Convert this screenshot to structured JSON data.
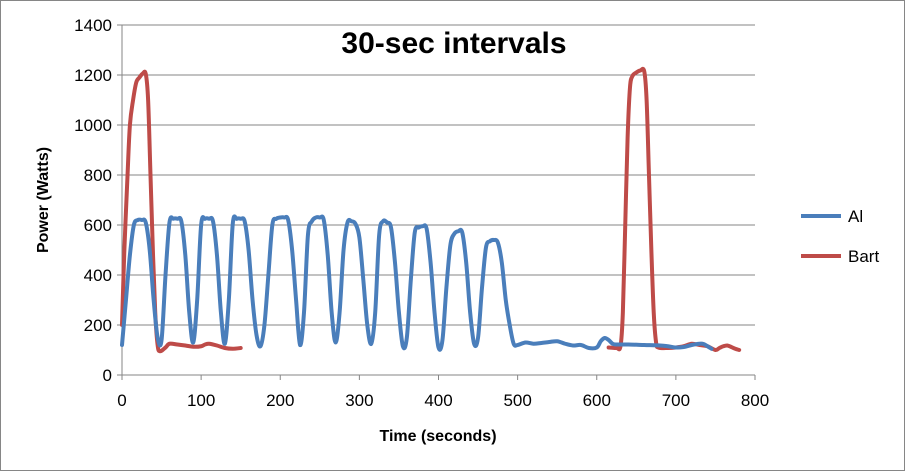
{
  "chart_data": {
    "type": "line",
    "title": "30-sec intervals",
    "xlabel": "Time (seconds)",
    "ylabel": "Power (Watts)",
    "xlim": [
      0,
      800
    ],
    "ylim": [
      0,
      1400
    ],
    "xticks": [
      0,
      100,
      200,
      300,
      400,
      500,
      600,
      700,
      800
    ],
    "yticks": [
      0,
      200,
      400,
      600,
      800,
      1000,
      1200,
      1400
    ],
    "grid": "horizontal",
    "legend": "right",
    "series": [
      {
        "name": "Al",
        "color": "#4a7ebb",
        "segments": [
          [
            [
              0,
              120
            ],
            [
              5,
              300
            ],
            [
              10,
              480
            ],
            [
              15,
              600
            ],
            [
              20,
              620
            ],
            [
              25,
              620
            ],
            [
              30,
              610
            ],
            [
              35,
              500
            ],
            [
              40,
              300
            ],
            [
              45,
              150
            ],
            [
              50,
              140
            ],
            [
              55,
              400
            ],
            [
              60,
              610
            ],
            [
              65,
              625
            ],
            [
              70,
              625
            ],
            [
              75,
              615
            ],
            [
              80,
              480
            ],
            [
              85,
              250
            ],
            [
              90,
              130
            ],
            [
              95,
              300
            ],
            [
              100,
              600
            ],
            [
              105,
              625
            ],
            [
              110,
              625
            ],
            [
              115,
              615
            ],
            [
              120,
              480
            ],
            [
              125,
              250
            ],
            [
              130,
              125
            ],
            [
              135,
              300
            ],
            [
              140,
              605
            ],
            [
              145,
              625
            ],
            [
              150,
              625
            ],
            [
              155,
              615
            ],
            [
              160,
              500
            ],
            [
              165,
              300
            ],
            [
              170,
              160
            ],
            [
              175,
              115
            ],
            [
              180,
              200
            ],
            [
              185,
              400
            ],
            [
              190,
              600
            ],
            [
              195,
              625
            ],
            [
              200,
              630
            ],
            [
              205,
              630
            ],
            [
              210,
              620
            ],
            [
              215,
              500
            ],
            [
              220,
              300
            ],
            [
              225,
              120
            ],
            [
              230,
              250
            ],
            [
              235,
              560
            ],
            [
              240,
              615
            ],
            [
              245,
              630
            ],
            [
              250,
              630
            ],
            [
              255,
              620
            ],
            [
              260,
              480
            ],
            [
              265,
              250
            ],
            [
              270,
              130
            ],
            [
              275,
              250
            ],
            [
              280,
              500
            ],
            [
              285,
              610
            ],
            [
              290,
              615
            ],
            [
              295,
              605
            ],
            [
              300,
              550
            ],
            [
              305,
              380
            ],
            [
              310,
              200
            ],
            [
              315,
              125
            ],
            [
              320,
              250
            ],
            [
              325,
              560
            ],
            [
              330,
              615
            ],
            [
              335,
              610
            ],
            [
              340,
              590
            ],
            [
              345,
              450
            ],
            [
              350,
              250
            ],
            [
              355,
              115
            ],
            [
              360,
              150
            ],
            [
              365,
              380
            ],
            [
              370,
              570
            ],
            [
              375,
              590
            ],
            [
              380,
              595
            ],
            [
              385,
              585
            ],
            [
              390,
              450
            ],
            [
              395,
              250
            ],
            [
              400,
              110
            ],
            [
              405,
              140
            ],
            [
              410,
              350
            ],
            [
              415,
              520
            ],
            [
              420,
              565
            ],
            [
              425,
              575
            ],
            [
              430,
              570
            ],
            [
              435,
              450
            ],
            [
              440,
              250
            ],
            [
              445,
              125
            ],
            [
              450,
              150
            ],
            [
              455,
              350
            ],
            [
              460,
              510
            ],
            [
              465,
              535
            ],
            [
              470,
              540
            ],
            [
              475,
              530
            ],
            [
              480,
              450
            ],
            [
              485,
              300
            ],
            [
              490,
              200
            ],
            [
              495,
              125
            ],
            [
              500,
              120
            ],
            [
              510,
              130
            ],
            [
              520,
              125
            ],
            [
              530,
              128
            ],
            [
              540,
              132
            ],
            [
              550,
              135
            ],
            [
              560,
              125
            ],
            [
              570,
              118
            ],
            [
              580,
              120
            ],
            [
              590,
              108
            ],
            [
              600,
              110
            ],
            [
              605,
              135
            ],
            [
              610,
              148
            ],
            [
              615,
              140
            ],
            [
              620,
              125
            ],
            [
              625,
              122
            ],
            [
              640,
              122
            ],
            [
              660,
              120
            ],
            [
              680,
              118
            ],
            [
              690,
              115
            ],
            [
              700,
              110
            ],
            [
              710,
              112
            ],
            [
              720,
              120
            ],
            [
              730,
              125
            ],
            [
              735,
              124
            ],
            [
              740,
              115
            ],
            [
              745,
              105
            ]
          ]
        ]
      },
      {
        "name": "Bart",
        "color": "#be4b48",
        "segments": [
          [
            [
              0,
              200
            ],
            [
              3,
              500
            ],
            [
              7,
              800
            ],
            [
              10,
              1000
            ],
            [
              14,
              1100
            ],
            [
              18,
              1170
            ],
            [
              22,
              1190
            ],
            [
              26,
              1205
            ],
            [
              30,
              1205
            ],
            [
              33,
              1100
            ],
            [
              36,
              800
            ],
            [
              39,
              500
            ],
            [
              42,
              250
            ],
            [
              45,
              120
            ],
            [
              48,
              95
            ],
            [
              55,
              110
            ],
            [
              60,
              125
            ],
            [
              70,
              122
            ],
            [
              80,
              118
            ],
            [
              90,
              113
            ],
            [
              100,
              115
            ],
            [
              105,
              122
            ],
            [
              110,
              125
            ],
            [
              120,
              118
            ],
            [
              130,
              108
            ],
            [
              140,
              105
            ],
            [
              150,
              108
            ]
          ],
          [
            [
              615,
              110
            ],
            [
              625,
              108
            ],
            [
              630,
              115
            ],
            [
              633,
              250
            ],
            [
              636,
              600
            ],
            [
              639,
              950
            ],
            [
              642,
              1150
            ],
            [
              645,
              1195
            ],
            [
              650,
              1210
            ],
            [
              655,
              1218
            ],
            [
              660,
              1215
            ],
            [
              663,
              1100
            ],
            [
              666,
              800
            ],
            [
              669,
              500
            ],
            [
              672,
              250
            ],
            [
              675,
              130
            ],
            [
              678,
              110
            ],
            [
              690,
              108
            ],
            [
              700,
              110
            ],
            [
              710,
              115
            ],
            [
              720,
              125
            ],
            [
              730,
              120
            ],
            [
              740,
              115
            ],
            [
              750,
              100
            ],
            [
              755,
              108
            ],
            [
              760,
              115
            ],
            [
              765,
              118
            ],
            [
              770,
              112
            ],
            [
              775,
              105
            ],
            [
              780,
              100
            ]
          ]
        ]
      }
    ]
  }
}
